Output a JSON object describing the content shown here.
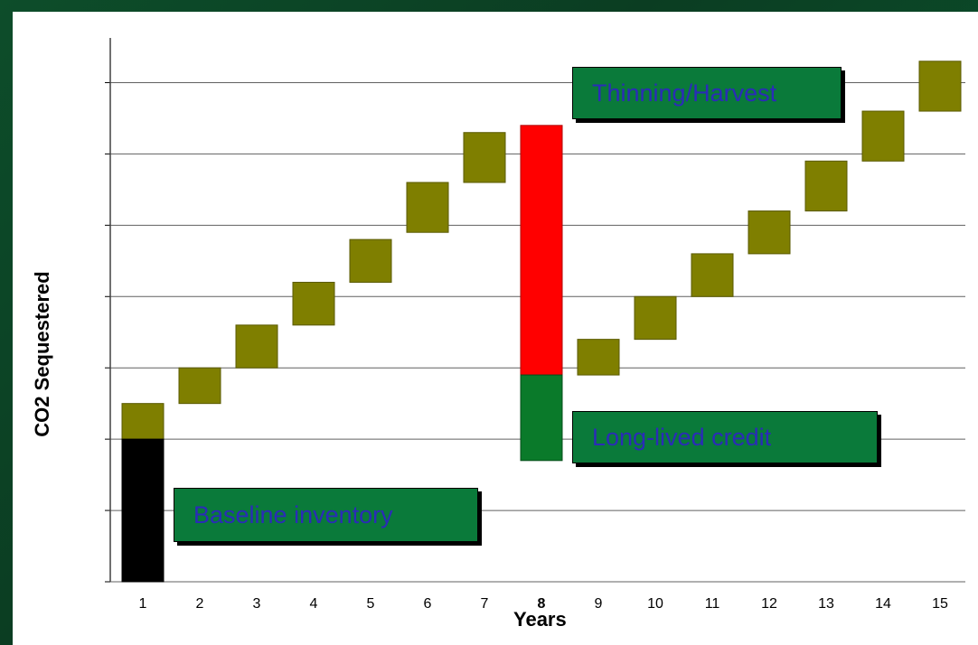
{
  "chart_data": {
    "type": "bar",
    "title": "",
    "xlabel": "Years",
    "ylabel": "CO2 Sequestered",
    "categories": [
      "1",
      "2",
      "3",
      "4",
      "5",
      "6",
      "7",
      "8",
      "9",
      "10",
      "11",
      "12",
      "13",
      "14",
      "15"
    ],
    "ylim": [
      0,
      7.5
    ],
    "grid": true,
    "series": [
      {
        "values": [
          {
            "x": "1",
            "low": 2.0,
            "high": 2.5
          },
          {
            "x": "2",
            "low": 2.5,
            "high": 3.0
          },
          {
            "x": "3",
            "low": 3.0,
            "high": 3.6
          },
          {
            "x": "4",
            "low": 3.6,
            "high": 4.2
          },
          {
            "x": "5",
            "low": 4.2,
            "high": 4.8
          },
          {
            "x": "6",
            "low": 4.9,
            "high": 5.6
          },
          {
            "x": "7",
            "low": 5.6,
            "high": 6.3
          },
          {
            "x": "9",
            "low": 2.9,
            "high": 3.4
          },
          {
            "x": "10",
            "low": 3.4,
            "high": 4.0
          },
          {
            "x": "11",
            "low": 4.0,
            "high": 4.6
          },
          {
            "x": "12",
            "low": 4.6,
            "high": 5.2
          },
          {
            "x": "13",
            "low": 5.2,
            "high": 5.9
          },
          {
            "x": "14",
            "low": 5.9,
            "high": 6.6
          },
          {
            "x": "15",
            "low": 6.6,
            "high": 7.3
          }
        ]
      },
      {
        "name": "Baseline inventory",
        "values": [
          {
            "x": "1",
            "low": 0.0,
            "high": 2.0
          }
        ]
      },
      {
        "name": "Thinning/Harvest",
        "values": [
          {
            "x": "8",
            "low": 2.9,
            "high": 6.4
          }
        ]
      },
      {
        "name": "Long-lived credit",
        "values": [
          {
            "x": "8",
            "low": 1.7,
            "high": 2.9
          }
        ]
      }
    ],
    "annotations": [
      "Baseline inventory",
      "Thinning/Harvest",
      "Long-lived credit"
    ]
  },
  "colors": {
    "annual": "#7f7f00",
    "baseline": "#000000",
    "harvest": "#ff0000",
    "credit": "#0a7a2a",
    "callout_fill": "#0a7a3a",
    "callout_text": "#2b2bb8"
  }
}
